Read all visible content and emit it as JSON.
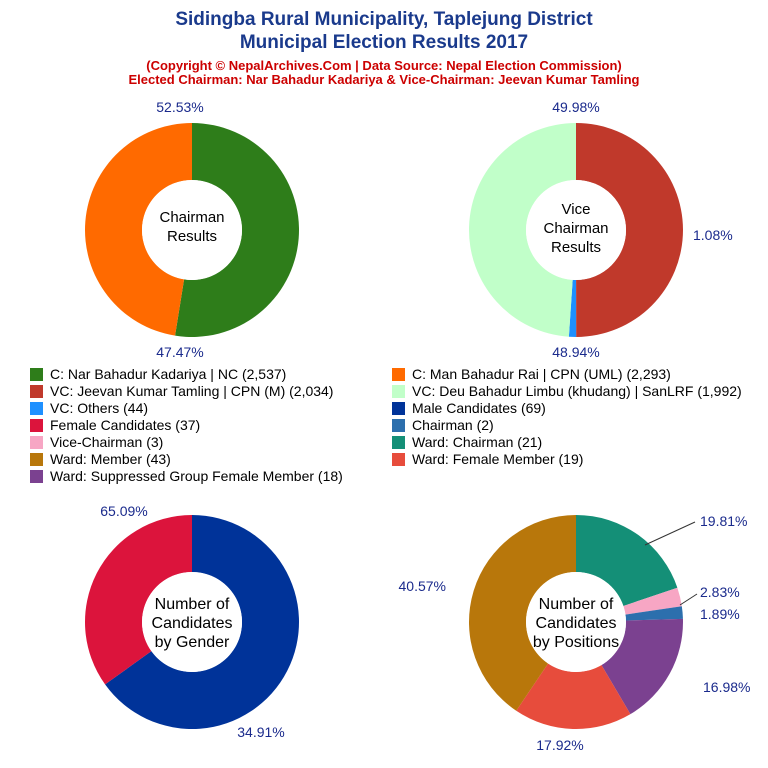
{
  "header": {
    "title_line1": "Sidingba Rural Municipality, Taplejung District",
    "title_line2": "Municipal Election Results 2017",
    "copyright": "(Copyright © NepalArchives.Com | Data Source: Nepal Election Commission)",
    "elected": "Elected Chairman: Nar Bahadur Kadariya & Vice-Chairman: Jeevan Kumar Tamling"
  },
  "legend": [
    {
      "label": "C: Nar Bahadur Kadariya | NC (2,537)",
      "color": "#2e7d1a"
    },
    {
      "label": "C: Man Bahadur Rai | CPN (UML) (2,293)",
      "color": "#ff6a00"
    },
    {
      "label": "VC: Jeevan Kumar Tamling | CPN (M) (2,034)",
      "color": "#c0392b"
    },
    {
      "label": "VC: Deu Bahadur Limbu (khudang) | SanLRF (1,992)",
      "color": "#c1ffc9"
    },
    {
      "label": "VC: Others (44)",
      "color": "#1e90ff"
    },
    {
      "label": "Male Candidates (69)",
      "color": "#003399"
    },
    {
      "label": "Female Candidates (37)",
      "color": "#dc143c"
    },
    {
      "label": "Chairman (2)",
      "color": "#2c6fad"
    },
    {
      "label": "Vice-Chairman (3)",
      "color": "#f7a6c4"
    },
    {
      "label": "Ward: Chairman (21)",
      "color": "#148f77"
    },
    {
      "label": "Ward: Member (43)",
      "color": "#b8770b"
    },
    {
      "label": "Ward: Female Member (19)",
      "color": "#e74c3c"
    },
    {
      "label": "Ward: Suppressed Group Female Member (18)",
      "color": "#7b4190"
    }
  ],
  "chart_data": [
    {
      "type": "pie",
      "center_label": [
        "Chairman",
        "Results"
      ],
      "slices": [
        {
          "label": "52.53%",
          "value": 52.53,
          "color": "#2e7d1a"
        },
        {
          "label": "47.47%",
          "value": 47.47,
          "color": "#ff6a00"
        }
      ]
    },
    {
      "type": "pie",
      "center_label": [
        "Vice",
        "Chairman",
        "Results"
      ],
      "slices": [
        {
          "label": "49.98%",
          "value": 49.98,
          "color": "#c0392b"
        },
        {
          "label": "1.08%",
          "value": 1.08,
          "color": "#1e90ff"
        },
        {
          "label": "48.94%",
          "value": 48.94,
          "color": "#c1ffc9"
        }
      ]
    },
    {
      "type": "pie",
      "center_label": [
        "Number of",
        "Candidates",
        "by Gender"
      ],
      "slices": [
        {
          "label": "65.09%",
          "value": 65.09,
          "color": "#003399"
        },
        {
          "label": "34.91%",
          "value": 34.91,
          "color": "#dc143c"
        }
      ]
    },
    {
      "type": "pie",
      "center_label": [
        "Number of",
        "Candidates",
        "by Positions"
      ],
      "slices": [
        {
          "label": "19.81%",
          "value": 19.81,
          "color": "#148f77"
        },
        {
          "label": "2.83%",
          "value": 2.83,
          "color": "#f7a6c4"
        },
        {
          "label": "1.89%",
          "value": 1.89,
          "color": "#2c6fad"
        },
        {
          "label": "16.98%",
          "value": 16.98,
          "color": "#7b4190"
        },
        {
          "label": "17.92%",
          "value": 17.92,
          "color": "#e74c3c"
        },
        {
          "label": "40.57%",
          "value": 40.57,
          "color": "#b8770b"
        }
      ]
    }
  ]
}
